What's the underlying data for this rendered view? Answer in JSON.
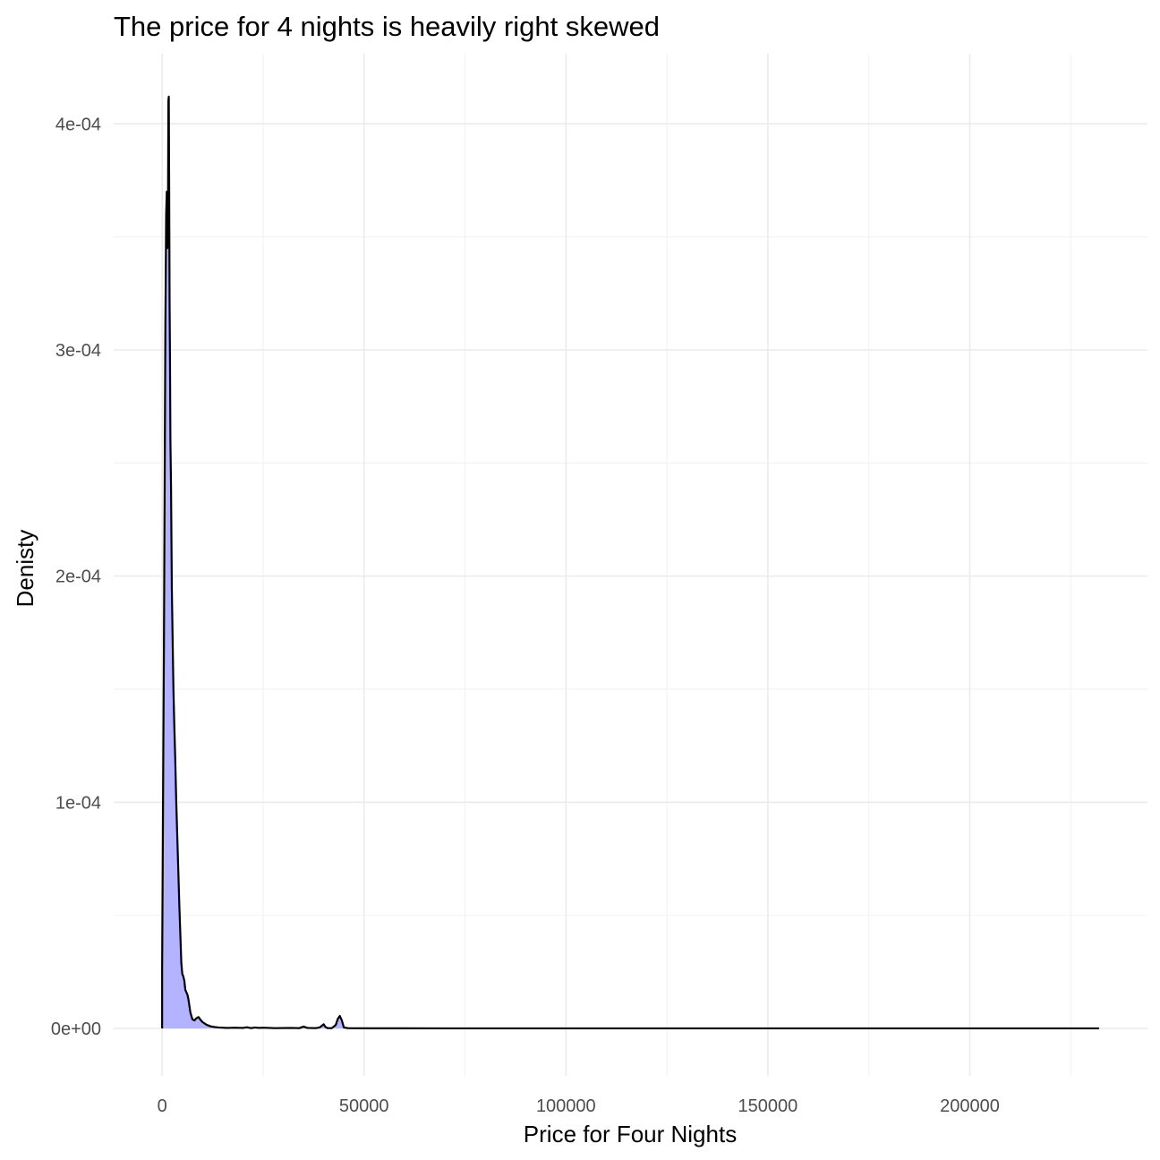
{
  "chart_data": {
    "type": "area",
    "title": "The price for 4 nights is heavily right skewed",
    "xlabel": "Price for Four Nights",
    "ylabel": "Denisty",
    "xlim": [
      -12000,
      244000
    ],
    "ylim": [
      -2.1e-05,
      0.000431
    ],
    "x_ticks": [
      0,
      50000,
      100000,
      150000,
      200000
    ],
    "x_tick_labels": [
      "0",
      "50000",
      "100000",
      "150000",
      "200000"
    ],
    "y_ticks": [
      0,
      0.0001,
      0.0002,
      0.0003,
      0.0004
    ],
    "y_tick_labels": [
      "0e+00",
      "1e-04",
      "2e-04",
      "3e-04",
      "4e-04"
    ],
    "grid": true,
    "legend": "none",
    "fill_color": "#b3b3ff",
    "line_color": "#000000",
    "series": [
      {
        "x": [
          0,
          150,
          300,
          450,
          600,
          800,
          1000,
          1150,
          1300,
          1450,
          1550,
          1650,
          1750,
          1850,
          1950,
          2050,
          2200,
          2400,
          2600,
          2800,
          3000,
          3250,
          3500,
          3750,
          4000,
          4250,
          4500,
          4750,
          5000,
          5250,
          5500,
          5750,
          6000,
          6250,
          6500,
          7000,
          7500,
          8000,
          8500,
          9000,
          9500,
          10000,
          10500,
          11000,
          12000,
          13000,
          14000,
          16000,
          18000,
          20000,
          21000,
          22000,
          23000,
          24000,
          25000,
          28000,
          32000,
          34000,
          35000,
          36000,
          38000,
          39000,
          40000,
          40500,
          41000,
          42000,
          43000,
          43500,
          44000,
          44500,
          45000,
          46000,
          48000,
          52000,
          60000,
          70000,
          80000,
          100000,
          150000,
          200000,
          232000
        ],
        "y": [
          2.6e-05,
          7.5e-05,
          0.000125,
          0.00017,
          0.00023,
          0.00031,
          0.00036,
          0.00037,
          0.000345,
          0.00036,
          0.00041,
          0.000412,
          0.00037,
          0.00032,
          0.000295,
          0.00026,
          0.00024,
          0.000195,
          0.000172,
          0.00015,
          0.000135,
          0.000119,
          0.0001,
          8.5e-05,
          7e-05,
          5.5e-05,
          4.2e-05,
          2.9e-05,
          2.4e-05,
          2.3e-05,
          2.1e-05,
          1.7e-05,
          1.6e-05,
          1.5e-05,
          1.3e-05,
          7e-06,
          4e-06,
          3.5e-06,
          4.5e-06,
          5e-06,
          3.8e-06,
          2.8e-06,
          2.2e-06,
          1.6e-06,
          9e-07,
          6e-07,
          4e-07,
          2e-07,
          3e-07,
          2e-07,
          5e-07,
          1e-07,
          4e-07,
          2e-07,
          3e-07,
          1e-07,
          2e-07,
          1e-07,
          8e-07,
          2e-07,
          1e-07,
          4e-07,
          1.8e-06,
          5e-07,
          1e-07,
          1e-07,
          1.5e-06,
          4.2e-06,
          5.5e-06,
          3.5e-06,
          4e-07,
          1e-07,
          5e-08,
          3e-08,
          2e-08,
          1e-08,
          1e-08,
          0.0,
          0.0,
          0.0,
          0.0
        ]
      }
    ]
  }
}
